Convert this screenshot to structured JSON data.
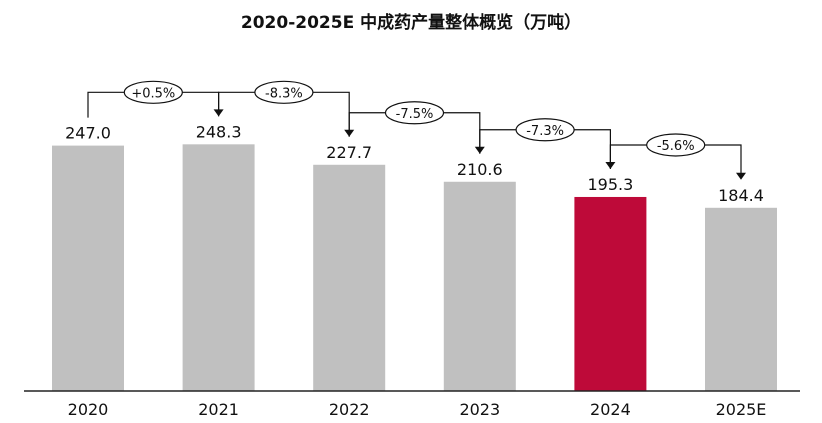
{
  "chart_data": {
    "type": "bar",
    "title": "2020-2025E 中成药产量整体概览（万吨）",
    "xlabel": "",
    "ylabel": "",
    "categories": [
      "2020",
      "2021",
      "2022",
      "2023",
      "2024",
      "2025E"
    ],
    "values": [
      247.0,
      248.3,
      227.7,
      210.6,
      195.3,
      184.4
    ],
    "value_labels": [
      "247.0",
      "248.3",
      "227.7",
      "210.6",
      "195.3",
      "184.4"
    ],
    "changes": [
      "+0.5%",
      "-8.3%",
      "-7.5%",
      "-7.3%",
      "-5.6%"
    ],
    "highlight_index": 4,
    "ylim": [
      0,
      270
    ],
    "grid": false,
    "legend": "none",
    "colors": {
      "bar": "#c0c0c0",
      "highlight": "#be0a39",
      "axis": "#222222",
      "text": "#111111"
    }
  }
}
